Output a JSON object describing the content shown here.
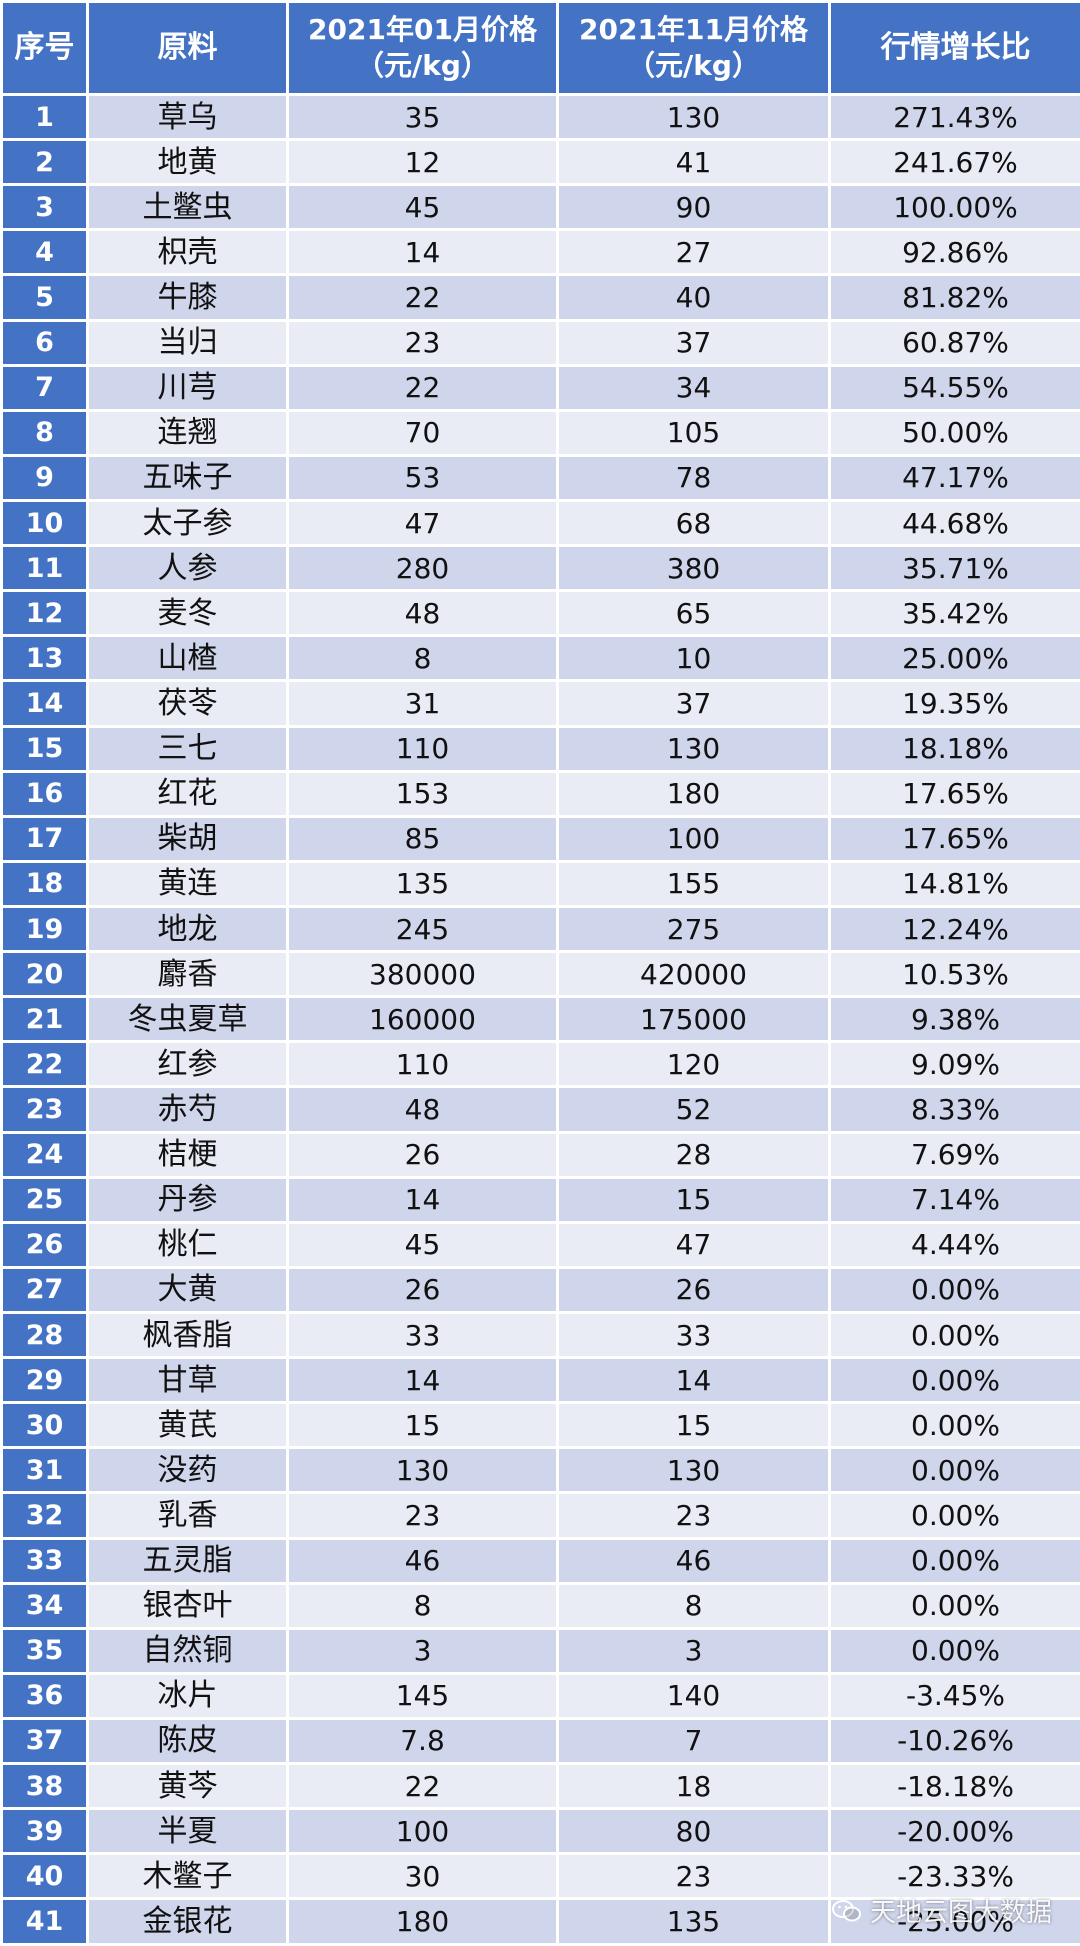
{
  "table": {
    "headers": {
      "index": "序号",
      "material": "原料",
      "price_jan_line1": "2021年01月价格",
      "price_jan_line2": "（元/kg）",
      "price_nov_line1": "2021年11月价格",
      "price_nov_line2": "（元/kg）",
      "growth": "行情增长比"
    },
    "rows": [
      {
        "index": "1",
        "name": "草乌",
        "jan": "35",
        "nov": "130",
        "growth": "271.43%"
      },
      {
        "index": "2",
        "name": "地黄",
        "jan": "12",
        "nov": "41",
        "growth": "241.67%"
      },
      {
        "index": "3",
        "name": "土鳖虫",
        "jan": "45",
        "nov": "90",
        "growth": "100.00%"
      },
      {
        "index": "4",
        "name": "枳壳",
        "jan": "14",
        "nov": "27",
        "growth": "92.86%"
      },
      {
        "index": "5",
        "name": "牛膝",
        "jan": "22",
        "nov": "40",
        "growth": "81.82%"
      },
      {
        "index": "6",
        "name": "当归",
        "jan": "23",
        "nov": "37",
        "growth": "60.87%"
      },
      {
        "index": "7",
        "name": "川芎",
        "jan": "22",
        "nov": "34",
        "growth": "54.55%"
      },
      {
        "index": "8",
        "name": "连翘",
        "jan": "70",
        "nov": "105",
        "growth": "50.00%"
      },
      {
        "index": "9",
        "name": "五味子",
        "jan": "53",
        "nov": "78",
        "growth": "47.17%"
      },
      {
        "index": "10",
        "name": "太子参",
        "jan": "47",
        "nov": "68",
        "growth": "44.68%"
      },
      {
        "index": "11",
        "name": "人参",
        "jan": "280",
        "nov": "380",
        "growth": "35.71%"
      },
      {
        "index": "12",
        "name": "麦冬",
        "jan": "48",
        "nov": "65",
        "growth": "35.42%"
      },
      {
        "index": "13",
        "name": "山楂",
        "jan": "8",
        "nov": "10",
        "growth": "25.00%"
      },
      {
        "index": "14",
        "name": "茯苓",
        "jan": "31",
        "nov": "37",
        "growth": "19.35%"
      },
      {
        "index": "15",
        "name": "三七",
        "jan": "110",
        "nov": "130",
        "growth": "18.18%"
      },
      {
        "index": "16",
        "name": "红花",
        "jan": "153",
        "nov": "180",
        "growth": "17.65%"
      },
      {
        "index": "17",
        "name": "柴胡",
        "jan": "85",
        "nov": "100",
        "growth": "17.65%"
      },
      {
        "index": "18",
        "name": "黄连",
        "jan": "135",
        "nov": "155",
        "growth": "14.81%"
      },
      {
        "index": "19",
        "name": "地龙",
        "jan": "245",
        "nov": "275",
        "growth": "12.24%"
      },
      {
        "index": "20",
        "name": "麝香",
        "jan": "380000",
        "nov": "420000",
        "growth": "10.53%"
      },
      {
        "index": "21",
        "name": "冬虫夏草",
        "jan": "160000",
        "nov": "175000",
        "growth": "9.38%"
      },
      {
        "index": "22",
        "name": "红参",
        "jan": "110",
        "nov": "120",
        "growth": "9.09%"
      },
      {
        "index": "23",
        "name": "赤芍",
        "jan": "48",
        "nov": "52",
        "growth": "8.33%"
      },
      {
        "index": "24",
        "name": "桔梗",
        "jan": "26",
        "nov": "28",
        "growth": "7.69%"
      },
      {
        "index": "25",
        "name": "丹参",
        "jan": "14",
        "nov": "15",
        "growth": "7.14%"
      },
      {
        "index": "26",
        "name": "桃仁",
        "jan": "45",
        "nov": "47",
        "growth": "4.44%"
      },
      {
        "index": "27",
        "name": "大黄",
        "jan": "26",
        "nov": "26",
        "growth": "0.00%"
      },
      {
        "index": "28",
        "name": "枫香脂",
        "jan": "33",
        "nov": "33",
        "growth": "0.00%"
      },
      {
        "index": "29",
        "name": "甘草",
        "jan": "14",
        "nov": "14",
        "growth": "0.00%"
      },
      {
        "index": "30",
        "name": "黄芪",
        "jan": "15",
        "nov": "15",
        "growth": "0.00%"
      },
      {
        "index": "31",
        "name": "没药",
        "jan": "130",
        "nov": "130",
        "growth": "0.00%"
      },
      {
        "index": "32",
        "name": "乳香",
        "jan": "23",
        "nov": "23",
        "growth": "0.00%"
      },
      {
        "index": "33",
        "name": "五灵脂",
        "jan": "46",
        "nov": "46",
        "growth": "0.00%"
      },
      {
        "index": "34",
        "name": "银杏叶",
        "jan": "8",
        "nov": "8",
        "growth": "0.00%"
      },
      {
        "index": "35",
        "name": "自然铜",
        "jan": "3",
        "nov": "3",
        "growth": "0.00%"
      },
      {
        "index": "36",
        "name": "冰片",
        "jan": "145",
        "nov": "140",
        "growth": "-3.45%"
      },
      {
        "index": "37",
        "name": "陈皮",
        "jan": "7.8",
        "nov": "7",
        "growth": "-10.26%"
      },
      {
        "index": "38",
        "name": "黄芩",
        "jan": "22",
        "nov": "18",
        "growth": "-18.18%"
      },
      {
        "index": "39",
        "name": "半夏",
        "jan": "100",
        "nov": "80",
        "growth": "-20.00%"
      },
      {
        "index": "40",
        "name": "木鳖子",
        "jan": "30",
        "nov": "23",
        "growth": "-23.33%"
      },
      {
        "index": "41",
        "name": "金银花",
        "jan": "180",
        "nov": "135",
        "growth": "-25.00%"
      }
    ]
  },
  "watermark": {
    "text": "天地云图大数据",
    "icon": "wechat-icon"
  },
  "colors": {
    "header_bg": "#4472c4",
    "row_dark": "#cfd5ea",
    "row_light": "#e9ebf5"
  }
}
